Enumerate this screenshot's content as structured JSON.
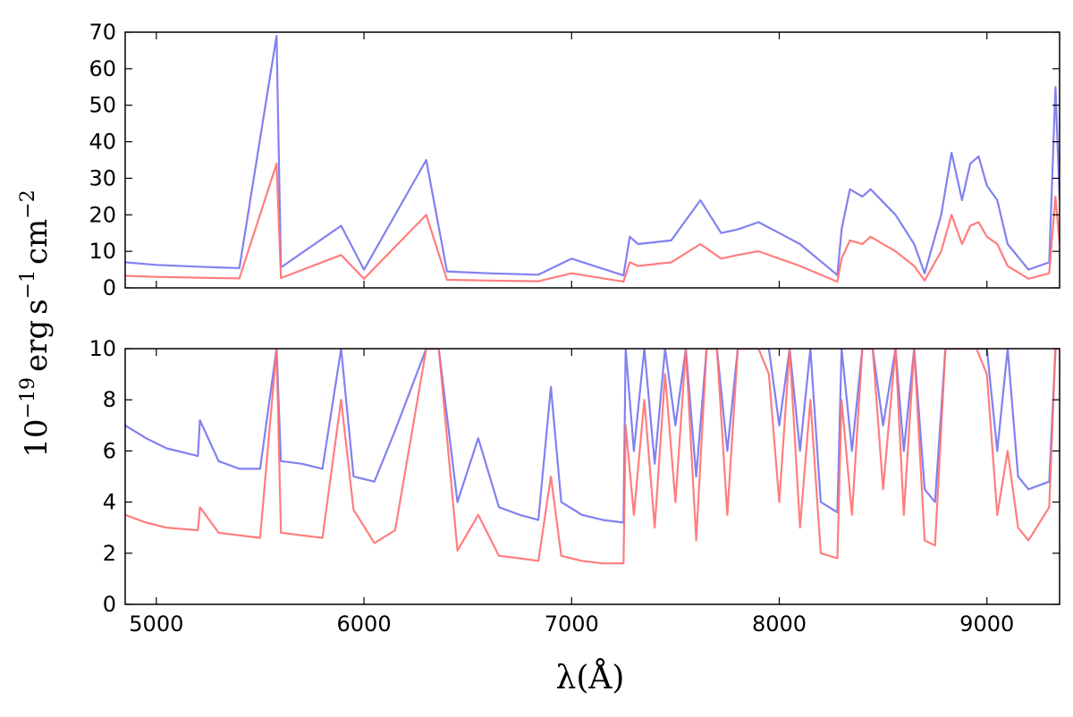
{
  "chart_data": [
    {
      "type": "line",
      "panel": "top",
      "xlim": [
        4850,
        9350
      ],
      "ylim": [
        0,
        70
      ],
      "yticks": [
        0,
        10,
        20,
        30,
        40,
        50,
        60,
        70
      ],
      "xticks_labeled": false,
      "series": [
        {
          "color": "#7373f0",
          "x": [
            4850,
            5000,
            5200,
            5400,
            5579,
            5600,
            5890,
            6000,
            6300,
            6400,
            6600,
            6840,
            7000,
            7250,
            7280,
            7320,
            7480,
            7620,
            7720,
            7800,
            7900,
            8000,
            8100,
            8280,
            8300,
            8340,
            8400,
            8440,
            8560,
            8650,
            8700,
            8780,
            8830,
            8880,
            8920,
            8960,
            9000,
            9050,
            9100,
            9200,
            9300,
            9330,
            9350
          ],
          "y": [
            7.0,
            6.3,
            5.8,
            5.4,
            69.0,
            5.6,
            17.0,
            5.0,
            35.0,
            4.5,
            4.0,
            3.6,
            8.0,
            3.4,
            14.0,
            12.0,
            13.0,
            24.0,
            15.0,
            16.0,
            18.0,
            15.0,
            12.0,
            3.5,
            16.0,
            27.0,
            25.0,
            27.0,
            20.0,
            12.0,
            4.0,
            20.0,
            37.0,
            24.0,
            34.0,
            36.0,
            28.0,
            24.0,
            12.0,
            5.0,
            7.0,
            55.0,
            24.0
          ]
        },
        {
          "color": "#ff7070",
          "x": [
            4850,
            5000,
            5200,
            5400,
            5579,
            5600,
            5890,
            6000,
            6300,
            6400,
            6600,
            6840,
            7000,
            7250,
            7280,
            7320,
            7480,
            7620,
            7720,
            7800,
            7900,
            8000,
            8100,
            8280,
            8300,
            8340,
            8400,
            8440,
            8560,
            8650,
            8700,
            8780,
            8830,
            8880,
            8920,
            8960,
            9000,
            9050,
            9100,
            9200,
            9300,
            9330,
            9350
          ],
          "y": [
            3.3,
            3.0,
            2.8,
            2.6,
            34.0,
            2.7,
            9.0,
            2.5,
            20.0,
            2.2,
            2.0,
            1.8,
            4.0,
            1.7,
            7.0,
            6.0,
            7.0,
            12.0,
            8.0,
            9.0,
            10.0,
            8.0,
            6.0,
            1.7,
            8.0,
            13.0,
            12.0,
            14.0,
            10.0,
            6.0,
            2.0,
            10.0,
            20.0,
            12.0,
            17.0,
            18.0,
            14.0,
            12.0,
            6.0,
            2.5,
            4.0,
            25.0,
            12.0
          ]
        }
      ]
    },
    {
      "type": "line",
      "panel": "bottom",
      "xlim": [
        4850,
        9350
      ],
      "ylim": [
        0,
        10
      ],
      "yticks": [
        0,
        2,
        4,
        6,
        8,
        10
      ],
      "xticks": [
        5000,
        6000,
        7000,
        8000,
        9000
      ],
      "xlabel": "λ(Å)",
      "series": [
        {
          "color": "#7373f0",
          "x": [
            4850,
            4950,
            5050,
            5200,
            5210,
            5300,
            5400,
            5500,
            5579,
            5600,
            5700,
            5800,
            5890,
            5950,
            6050,
            6150,
            6300,
            6360,
            6450,
            6550,
            6650,
            6750,
            6840,
            6900,
            6950,
            7050,
            7150,
            7250,
            7260,
            7300,
            7350,
            7400,
            7450,
            7500,
            7550,
            7600,
            7650,
            7700,
            7750,
            7800,
            7850,
            7900,
            7950,
            8000,
            8050,
            8100,
            8150,
            8200,
            8280,
            8300,
            8350,
            8400,
            8450,
            8500,
            8560,
            8600,
            8650,
            8700,
            8750,
            8800,
            8850,
            8900,
            8950,
            9000,
            9050,
            9100,
            9150,
            9200,
            9300,
            9330,
            9350
          ],
          "y": [
            7.0,
            6.5,
            6.1,
            5.8,
            7.2,
            5.6,
            5.3,
            5.3,
            10.0,
            5.6,
            5.5,
            5.3,
            10.0,
            5.0,
            4.8,
            6.8,
            10.0,
            10.0,
            4.0,
            6.5,
            3.8,
            3.5,
            3.3,
            8.5,
            4.0,
            3.5,
            3.3,
            3.2,
            10.0,
            6.0,
            10.0,
            5.5,
            10.0,
            7.0,
            10.0,
            5.0,
            10.0,
            10.0,
            6.0,
            10.0,
            10.0,
            10.0,
            10.0,
            7.0,
            10.0,
            6.0,
            10.0,
            4.0,
            3.6,
            10.0,
            6.0,
            10.0,
            10.0,
            7.0,
            10.0,
            6.0,
            10.0,
            4.5,
            4.0,
            10.0,
            10.0,
            10.0,
            10.0,
            10.0,
            6.0,
            10.0,
            5.0,
            4.5,
            4.8,
            10.0,
            10.0
          ]
        },
        {
          "color": "#ff7070",
          "x": [
            4850,
            4950,
            5050,
            5200,
            5210,
            5300,
            5400,
            5500,
            5579,
            5600,
            5700,
            5800,
            5890,
            5950,
            6050,
            6150,
            6300,
            6360,
            6450,
            6550,
            6650,
            6750,
            6840,
            6900,
            6950,
            7050,
            7150,
            7250,
            7260,
            7300,
            7350,
            7400,
            7450,
            7500,
            7550,
            7600,
            7650,
            7700,
            7750,
            7800,
            7850,
            7900,
            7950,
            8000,
            8050,
            8100,
            8150,
            8200,
            8280,
            8300,
            8350,
            8400,
            8450,
            8500,
            8560,
            8600,
            8650,
            8700,
            8750,
            8800,
            8850,
            8900,
            8950,
            9000,
            9050,
            9100,
            9150,
            9200,
            9300,
            9330,
            9350
          ],
          "y": [
            3.5,
            3.2,
            3.0,
            2.9,
            3.8,
            2.8,
            2.7,
            2.6,
            10.0,
            2.8,
            2.7,
            2.6,
            8.0,
            3.7,
            2.4,
            2.9,
            10.0,
            10.0,
            2.1,
            3.5,
            1.9,
            1.8,
            1.7,
            5.0,
            1.9,
            1.7,
            1.6,
            1.6,
            7.0,
            3.5,
            8.0,
            3.0,
            9.0,
            4.0,
            10.0,
            2.5,
            10.0,
            10.0,
            3.5,
            10.0,
            10.0,
            10.0,
            9.0,
            4.0,
            10.0,
            3.0,
            8.0,
            2.0,
            1.8,
            8.0,
            3.5,
            10.0,
            10.0,
            4.5,
            10.0,
            3.5,
            10.0,
            2.5,
            2.3,
            10.0,
            10.0,
            10.0,
            10.0,
            9.0,
            3.5,
            6.0,
            3.0,
            2.5,
            3.8,
            10.0,
            10.0
          ]
        }
      ]
    }
  ],
  "ylabel": "10⁻¹⁹ erg s⁻¹ cm⁻²",
  "ylabel_main": "10",
  "ylabel_exp": "−19",
  "ylabel_erg": "erg",
  "ylabel_s": "s",
  "ylabel_s_exp": "−1",
  "ylabel_cm": "cm",
  "ylabel_cm_exp": "−2",
  "xlabel": "λ(Å)"
}
